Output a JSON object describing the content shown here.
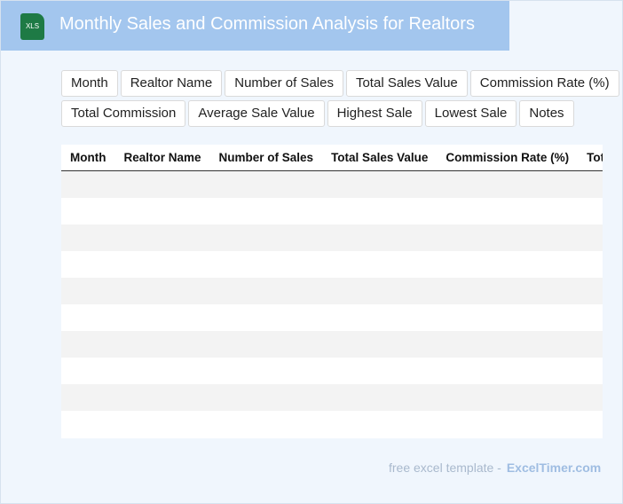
{
  "header": {
    "icon_label": "XLS",
    "title": "Monthly Sales and Commission Analysis for Realtors"
  },
  "fields": [
    "Month",
    "Realtor Name",
    "Number of Sales",
    "Total Sales Value",
    "Commission Rate (%)",
    "Total Commission",
    "Average Sale Value",
    "Highest Sale",
    "Lowest Sale",
    "Notes"
  ],
  "table": {
    "columns": [
      "Month",
      "Realtor Name",
      "Number of Sales",
      "Total Sales Value",
      "Commission Rate (%)",
      "Total Commission"
    ]
  },
  "footer": {
    "text": "free excel template -",
    "link": "ExcelTimer.com"
  }
}
